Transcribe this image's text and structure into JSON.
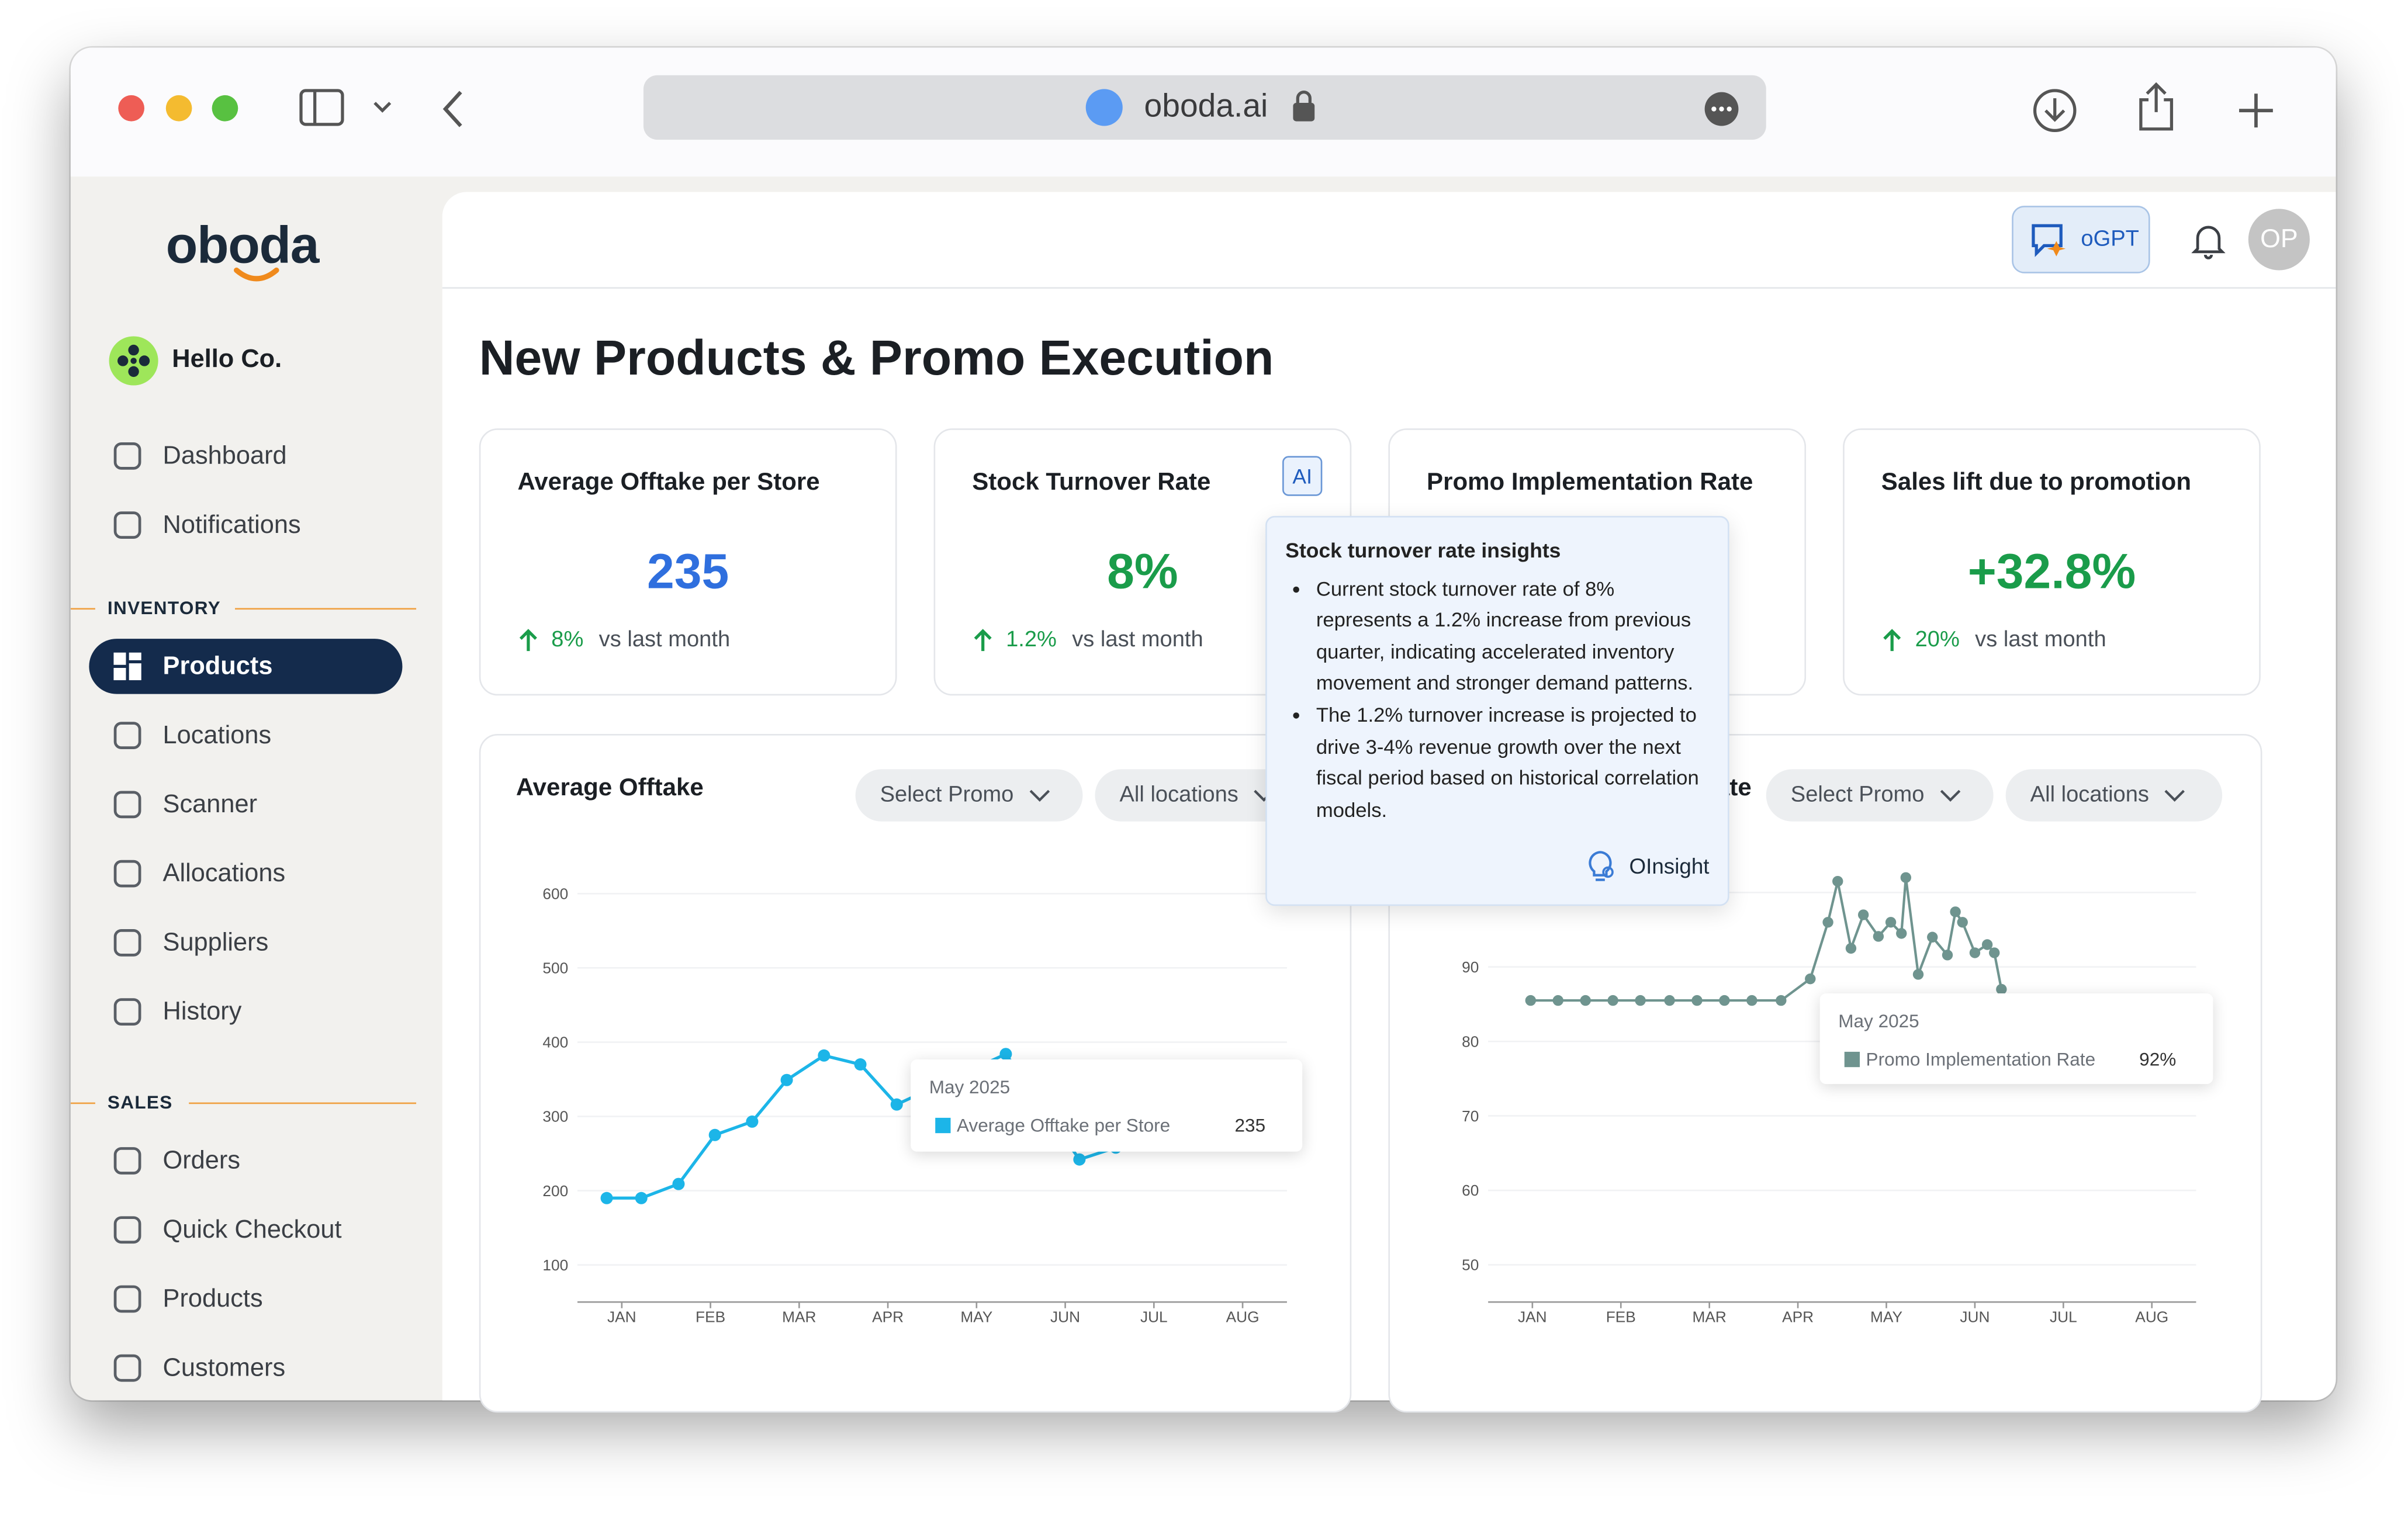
{
  "browser": {
    "url": "oboda.ai"
  },
  "sidebar": {
    "logo": "oboda",
    "company": "Hello Co.",
    "nav": [
      "Dashboard",
      "Notifications"
    ],
    "sections": [
      {
        "title": "INVENTORY",
        "items": [
          "Products",
          "Locations",
          "Scanner",
          "Allocations",
          "Suppliers",
          "History"
        ]
      },
      {
        "title": "SALES",
        "items": [
          "Orders",
          "Quick Checkout",
          "Products",
          "Customers"
        ]
      }
    ]
  },
  "header": {
    "assistant": "oGPT",
    "avatar": "OP"
  },
  "page_title": "New Products & Promo Execution",
  "kpis": [
    {
      "title": "Average Offtake per Store",
      "value": "235",
      "change": "8%",
      "compare": "vs last month"
    },
    {
      "title": "Stock Turnover Rate",
      "value": "8%",
      "change": "1.2%",
      "compare": "vs last month"
    },
    {
      "title": "Promo Implementation Rate"
    },
    {
      "title": "Sales lift due to promotion",
      "value": "+32.8%",
      "change": "20%",
      "compare": "vs last month"
    }
  ],
  "ai_badge": "AI",
  "insight": {
    "title": "Stock turnover rate insights",
    "bullets": [
      "Current stock turnover rate of 8% represents a 1.2% increase from previous quarter, indicating accelerated inventory movement and stronger demand patterns.",
      "The 1.2% turnover increase is projected to drive 3-4% revenue growth over the next fiscal period based on historical correlation models."
    ],
    "source": "OInsight"
  },
  "charts": [
    {
      "type": "line",
      "title": "Average Offtake",
      "filters": [
        "Select Promo",
        "All locations"
      ],
      "xlim": [
        0.5,
        8.5
      ],
      "xticks": [
        {
          "value": 1,
          "label": "JAN"
        },
        {
          "value": 2,
          "label": "FEB"
        },
        {
          "value": 3,
          "label": "MAR"
        },
        {
          "value": 4,
          "label": "APR"
        },
        {
          "value": 5,
          "label": "MAY"
        },
        {
          "value": 6,
          "label": "JUN"
        },
        {
          "value": 7,
          "label": "JUL"
        },
        {
          "value": 8,
          "label": "AUG"
        }
      ],
      "ylim": [
        50,
        600
      ],
      "yticks": [
        100,
        200,
        300,
        400,
        500,
        600
      ],
      "series": [
        {
          "name": "Average Offtake per Store",
          "color": "#1cb5e8",
          "x": [
            0.83,
            1.22,
            1.64,
            2.05,
            2.47,
            2.86,
            3.28,
            3.69,
            4.1,
            5.33,
            6.16,
            6.57
          ],
          "values": [
            190,
            190,
            209,
            275,
            293,
            349,
            382,
            370,
            316,
            384,
            242,
            258
          ]
        }
      ],
      "tooltip": {
        "title": "May 2025",
        "value": "235"
      }
    },
    {
      "type": "line",
      "title": "Promo Implementation Rate",
      "filters": [
        "Select Promo",
        "All locations"
      ],
      "xlim": [
        0.5,
        8.5
      ],
      "xticks": [
        {
          "value": 1,
          "label": "JAN"
        },
        {
          "value": 2,
          "label": "FEB"
        },
        {
          "value": 3,
          "label": "MAR"
        },
        {
          "value": 4,
          "label": "APR"
        },
        {
          "value": 5,
          "label": "MAY"
        },
        {
          "value": 6,
          "label": "JUN"
        },
        {
          "value": 7,
          "label": "JUL"
        },
        {
          "value": 8,
          "label": "AUG"
        }
      ],
      "ylim": [
        45,
        105
      ],
      "yticks": [
        50,
        60,
        70,
        80,
        90,
        100
      ],
      "series": [
        {
          "name": "Promo Implementation Rate",
          "color": "#6f948f",
          "x": [
            0.98,
            1.29,
            1.6,
            1.91,
            2.22,
            2.55,
            2.86,
            3.17,
            3.48,
            3.81,
            4.14,
            4.34,
            4.45,
            4.6,
            4.74,
            4.91,
            5.05,
            5.17,
            5.22,
            5.36,
            5.52,
            5.69,
            5.78,
            5.86,
            6.0,
            6.14,
            6.22,
            6.3
          ],
          "values": [
            85.5,
            85.5,
            85.5,
            85.5,
            85.5,
            85.5,
            85.5,
            85.5,
            85.5,
            85.5,
            88.4,
            96,
            101.5,
            92.5,
            97,
            94.1,
            96,
            94.5,
            102,
            89,
            94,
            91.6,
            97.4,
            96,
            91.9,
            93,
            91.9,
            87
          ]
        }
      ],
      "tooltip": {
        "title": "May 2025",
        "value": "92%"
      }
    }
  ]
}
